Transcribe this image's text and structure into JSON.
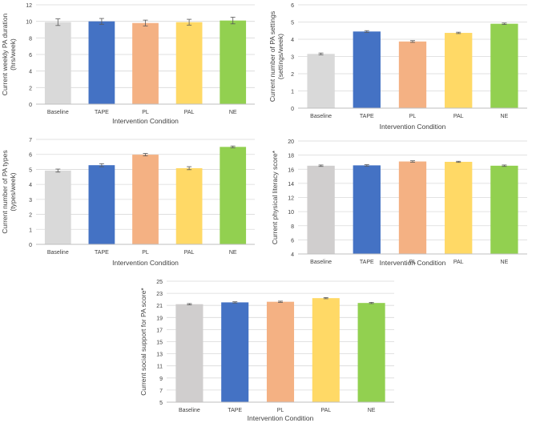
{
  "chart_data": [
    {
      "type": "bar",
      "categories": [
        "Baseline",
        "TAPE",
        "PL",
        "PAL",
        "NE"
      ],
      "values": [
        9.9,
        10.0,
        9.8,
        9.9,
        10.1
      ],
      "errors": [
        0.4,
        0.35,
        0.35,
        0.35,
        0.4
      ],
      "colors": [
        "#d9d9d9",
        "#4472c4",
        "#f4b183",
        "#ffd966",
        "#92d050"
      ],
      "ylim": [
        0,
        12
      ],
      "yticks": [
        0,
        2,
        4,
        6,
        8,
        10,
        12
      ],
      "xlabel": "Intervention Condition",
      "ylabel_lines": [
        "Current weekly PA duration",
        "(hrs/week)"
      ]
    },
    {
      "type": "bar",
      "categories": [
        "Baseline",
        "TAPE",
        "PL",
        "PAL",
        "NE"
      ],
      "values": [
        3.15,
        4.45,
        3.87,
        4.37,
        4.9
      ],
      "errors": [
        0.05,
        0.05,
        0.05,
        0.04,
        0.04
      ],
      "colors": [
        "#d9d9d9",
        "#4472c4",
        "#f4b183",
        "#ffd966",
        "#92d050"
      ],
      "ylim": [
        0,
        6
      ],
      "yticks": [
        0,
        1,
        2,
        3,
        4,
        5,
        6
      ],
      "xlabel": "Intervention Condition",
      "ylabel_lines": [
        "Current number of PA settings",
        "(settings/week)"
      ]
    },
    {
      "type": "bar",
      "categories": [
        "Baseline",
        "TAPE",
        "PL",
        "PAL",
        "NE"
      ],
      "values": [
        4.92,
        5.28,
        5.98,
        5.08,
        6.5
      ],
      "errors": [
        0.1,
        0.1,
        0.08,
        0.1,
        0.06
      ],
      "colors": [
        "#d9d9d9",
        "#4472c4",
        "#f4b183",
        "#ffd966",
        "#92d050"
      ],
      "ylim": [
        0,
        7
      ],
      "yticks": [
        0,
        1,
        2,
        3,
        4,
        5,
        6,
        7
      ],
      "xlabel": "Intervention Condition",
      "ylabel_lines": [
        "Current number of PA types",
        "(types/week)"
      ]
    },
    {
      "type": "bar",
      "categories": [
        "Baseline",
        "TAPE",
        "PL",
        "PAL",
        "NE"
      ],
      "values": [
        16.5,
        16.55,
        17.1,
        17.05,
        16.5
      ],
      "errors": [
        0.1,
        0.1,
        0.1,
        0.08,
        0.1
      ],
      "colors": [
        "#d0cece",
        "#4472c4",
        "#f4b183",
        "#ffd966",
        "#92d050"
      ],
      "ylim": [
        4,
        20
      ],
      "yticks": [
        4,
        6,
        8,
        10,
        12,
        14,
        16,
        18,
        20
      ],
      "xlabel": "Intervention Condition",
      "ylabel_lines": [
        "Current physical literacy score*"
      ]
    },
    {
      "type": "bar",
      "categories": [
        "Baseline",
        "TAPE",
        "PL",
        "PAL",
        "NE"
      ],
      "values": [
        21.2,
        21.5,
        21.6,
        22.2,
        21.4
      ],
      "errors": [
        0.1,
        0.1,
        0.1,
        0.1,
        0.1
      ],
      "colors": [
        "#d0cece",
        "#4472c4",
        "#f4b183",
        "#ffd966",
        "#92d050"
      ],
      "ylim": [
        5,
        25
      ],
      "yticks": [
        5,
        7,
        9,
        11,
        13,
        15,
        17,
        19,
        21,
        23,
        25
      ],
      "xlabel": "Intervention Condition",
      "ylabel_lines": [
        "Current social support for PA score*"
      ]
    }
  ]
}
